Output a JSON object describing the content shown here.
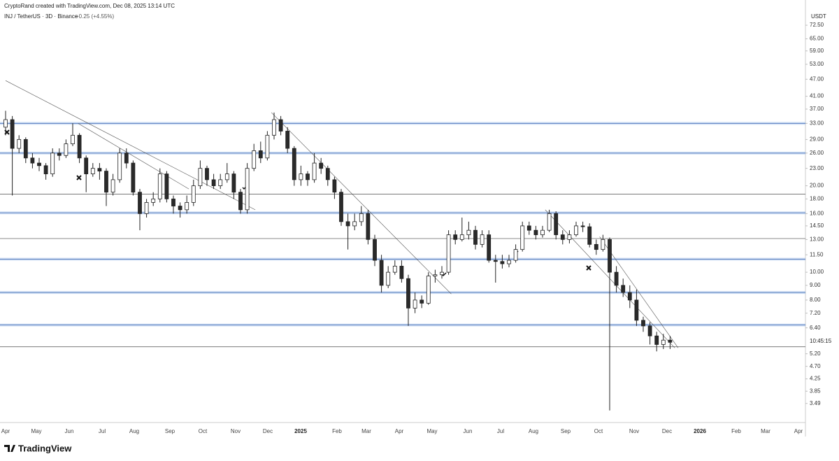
{
  "header": {
    "credit": "CryptoRand created with TradingView.com, Dec 08, 2025 13:14 UTC",
    "symbol": "INJ / TetherUS · 3D · Binance",
    "change": "+0.25 (+4.55%)",
    "logo": "TradingView"
  },
  "chart_data": {
    "type": "candlestick",
    "currency": "USDT",
    "timer": "10:45:15",
    "log_scale": true,
    "grid": false,
    "up_color": "#ffffff",
    "down_color": "#2a2a2a",
    "edge_color": "#222222",
    "ylim": [
      3.24,
      75
    ],
    "yticks": [
      {
        "value": 72.5,
        "label": "72.50"
      },
      {
        "value": 65,
        "label": "65.00"
      },
      {
        "value": 59,
        "label": "59.00"
      },
      {
        "value": 53,
        "label": "53.00"
      },
      {
        "value": 47,
        "label": "47.00"
      },
      {
        "value": 41,
        "label": "41.00"
      },
      {
        "value": 37,
        "label": "37.00"
      },
      {
        "value": 33,
        "label": "33.00"
      },
      {
        "value": 29,
        "label": "29.00"
      },
      {
        "value": 26,
        "label": "26.00"
      },
      {
        "value": 23,
        "label": "23.00"
      },
      {
        "value": 20,
        "label": "20.00"
      },
      {
        "value": 18,
        "label": "18.00"
      },
      {
        "value": 16,
        "label": "16.00"
      },
      {
        "value": 14.5,
        "label": "14.50"
      },
      {
        "value": 13,
        "label": "13.00"
      },
      {
        "value": 11.5,
        "label": "11.50"
      },
      {
        "value": 10,
        "label": "10.00"
      },
      {
        "value": 9,
        "label": "9.00"
      },
      {
        "value": 8,
        "label": "8.00"
      },
      {
        "value": 7.2,
        "label": "7.20"
      },
      {
        "value": 6.4,
        "label": "6.40"
      },
      {
        "value": 5.2,
        "label": "5.20"
      },
      {
        "value": 4.7,
        "label": "4.70"
      },
      {
        "value": 4.25,
        "label": "4.25"
      },
      {
        "value": 3.85,
        "label": "3.85"
      },
      {
        "value": 3.49,
        "label": "3.49"
      }
    ],
    "x_labels": [
      "Apr",
      "May",
      "Jun",
      "Jul",
      "Aug",
      "Sep",
      "Oct",
      "Nov",
      "Dec",
      "2025",
      "Feb",
      "Mar",
      "Apr",
      "May",
      "Jun",
      "Jul",
      "Aug",
      "Sep",
      "Oct",
      "Nov",
      "Dec",
      "2026",
      "Feb",
      "Mar",
      "Apr"
    ],
    "zones": {
      "color": "#7ea6e0",
      "values": [
        33,
        26,
        16.1,
        11.1,
        8.5,
        6.55
      ]
    },
    "levels": {
      "color": "#666666",
      "values": [
        18.7,
        13.1,
        5.5
      ]
    },
    "trendlines": [
      [
        [
          0,
          46.5
        ],
        [
          37.2,
          16.5
        ]
      ],
      [
        [
          10.8,
          33
        ],
        [
          27.3,
          19.5
        ]
      ],
      [
        [
          39.6,
          36
        ],
        [
          66.4,
          8.4
        ]
      ],
      [
        [
          80.4,
          16.5
        ],
        [
          99.7,
          5.45
        ]
      ],
      [
        [
          88.5,
          13.3
        ],
        [
          100.2,
          5.45
        ]
      ]
    ],
    "candles": [
      [
        32,
        36.5,
        30,
        34
      ],
      [
        34,
        35,
        18.5,
        27
      ],
      [
        27,
        30,
        26,
        29
      ],
      [
        29,
        29.5,
        24,
        25
      ],
      [
        25,
        26,
        23,
        24
      ],
      [
        24,
        25,
        22.5,
        23.5
      ],
      [
        23.5,
        24,
        21,
        22
      ],
      [
        22,
        27,
        21.5,
        26
      ],
      [
        26,
        27,
        24.5,
        25.5
      ],
      [
        25.5,
        29,
        25,
        28
      ],
      [
        28,
        33,
        27.5,
        30
      ],
      [
        30,
        30.5,
        24,
        25
      ],
      [
        25,
        25.5,
        19,
        22
      ],
      [
        22,
        24,
        21.5,
        23
      ],
      [
        23,
        24,
        21,
        22.5
      ],
      [
        22.5,
        23,
        17,
        19
      ],
      [
        19,
        22,
        18.5,
        21
      ],
      [
        21,
        27,
        20.5,
        26
      ],
      [
        26,
        27,
        23,
        24
      ],
      [
        24,
        24.5,
        18.5,
        19
      ],
      [
        19,
        19.5,
        14,
        16
      ],
      [
        16,
        18,
        15.5,
        17.5
      ],
      [
        17.5,
        19,
        17,
        18
      ],
      [
        18,
        23,
        17.5,
        22
      ],
      [
        22,
        22.5,
        17.5,
        18
      ],
      [
        18,
        18.5,
        16,
        17
      ],
      [
        17,
        17.5,
        15.5,
        16.5
      ],
      [
        16.5,
        18.5,
        16,
        17.5
      ],
      [
        17.5,
        21,
        17,
        20
      ],
      [
        20,
        24.5,
        19.5,
        23
      ],
      [
        23,
        23.5,
        20,
        21
      ],
      [
        21,
        22,
        19.5,
        20
      ],
      [
        20,
        22,
        19.5,
        21
      ],
      [
        21,
        24,
        20.5,
        22
      ],
      [
        22,
        22.5,
        18,
        19
      ],
      [
        19,
        19.5,
        16,
        16.5
      ],
      [
        16.5,
        24,
        16,
        23
      ],
      [
        23,
        28,
        22.5,
        26.5
      ],
      [
        26.5,
        28.5,
        24,
        25
      ],
      [
        25,
        31,
        24.5,
        30
      ],
      [
        30,
        36,
        29,
        34
      ],
      [
        34,
        35,
        30,
        31
      ],
      [
        31,
        32,
        26,
        27
      ],
      [
        27,
        27.5,
        20,
        21
      ],
      [
        21,
        23.5,
        20,
        22
      ],
      [
        22,
        22.5,
        20,
        21
      ],
      [
        21,
        26,
        20.5,
        24
      ],
      [
        24,
        25,
        22,
        23
      ],
      [
        23,
        23.5,
        20,
        21
      ],
      [
        21,
        21.5,
        18,
        19
      ],
      [
        19,
        19.5,
        14.5,
        15
      ],
      [
        15,
        16,
        12,
        14.5
      ],
      [
        14.5,
        16,
        14,
        15
      ],
      [
        15,
        17,
        14.5,
        16
      ],
      [
        16,
        16.5,
        12.5,
        13
      ],
      [
        13,
        13.5,
        10.5,
        11
      ],
      [
        11,
        11.5,
        8.5,
        9
      ],
      [
        9,
        10.5,
        8.8,
        10
      ],
      [
        10,
        11,
        9.8,
        10.5
      ],
      [
        10.5,
        11,
        9.2,
        9.5
      ],
      [
        9.5,
        9.8,
        6.5,
        7.5
      ],
      [
        7.5,
        8.5,
        7.2,
        8
      ],
      [
        8,
        8.3,
        7.5,
        7.8
      ],
      [
        7.8,
        10,
        7.7,
        9.7
      ],
      [
        9.7,
        10.2,
        9.2,
        9.8
      ],
      [
        9.8,
        10.5,
        9.5,
        10
      ],
      [
        10,
        14,
        9.8,
        13.5
      ],
      [
        13.5,
        14,
        12.5,
        13
      ],
      [
        13,
        15.5,
        12.8,
        13.5
      ],
      [
        13.5,
        15,
        13,
        14
      ],
      [
        14,
        14.5,
        12,
        12.5
      ],
      [
        12.5,
        14,
        12.2,
        13.5
      ],
      [
        13.5,
        14,
        10.8,
        11
      ],
      [
        11,
        11.5,
        9.2,
        10.9
      ],
      [
        10.9,
        11.5,
        10.3,
        10.7
      ],
      [
        10.7,
        11.5,
        10.4,
        11
      ],
      [
        11,
        12.5,
        10.8,
        12
      ],
      [
        12,
        15,
        11.8,
        14.5
      ],
      [
        14.5,
        15,
        13.5,
        14
      ],
      [
        14,
        14.5,
        13,
        13.5
      ],
      [
        13.5,
        14.5,
        13.2,
        14
      ],
      [
        14,
        16.5,
        13.8,
        16
      ],
      [
        16,
        16.3,
        13,
        13.5
      ],
      [
        13.5,
        14,
        12.5,
        13
      ],
      [
        13,
        14,
        12.6,
        13.5
      ],
      [
        13.5,
        15,
        13.3,
        14.5
      ],
      [
        14.5,
        15,
        13.8,
        14.4
      ],
      [
        14.4,
        14.8,
        12.2,
        12.5
      ],
      [
        12.5,
        13,
        11.5,
        12
      ],
      [
        12,
        13.5,
        11.8,
        13
      ],
      [
        13,
        13.2,
        3.3,
        10
      ],
      [
        10,
        10.5,
        8.5,
        9
      ],
      [
        9,
        9.5,
        8.2,
        8.5
      ],
      [
        8.5,
        9,
        7.5,
        8
      ],
      [
        8,
        8.7,
        6.5,
        6.8
      ],
      [
        6.8,
        7,
        6.2,
        6.5
      ],
      [
        6.5,
        6.7,
        5.6,
        6
      ],
      [
        6,
        6.2,
        5.3,
        5.6
      ],
      [
        5.6,
        6.1,
        5.4,
        5.8
      ],
      [
        5.8,
        6,
        5.4,
        5.7
      ]
    ]
  }
}
